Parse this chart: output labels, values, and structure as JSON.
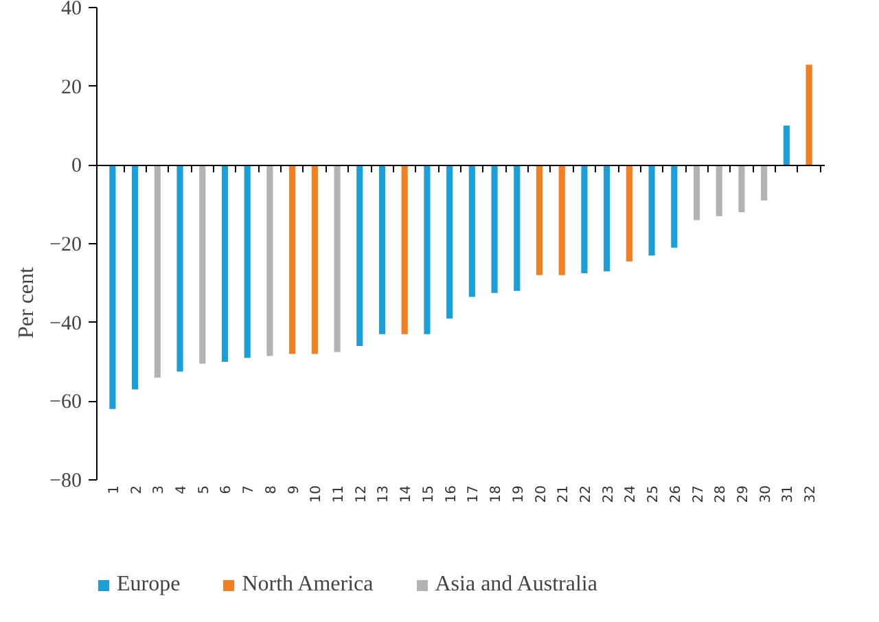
{
  "chart_data": {
    "type": "bar",
    "ylabel": "Per cent",
    "categories": [
      "1",
      "2",
      "3",
      "4",
      "5",
      "6",
      "7",
      "8",
      "9",
      "10",
      "11",
      "12",
      "13",
      "14",
      "15",
      "16",
      "17",
      "18",
      "19",
      "20",
      "21",
      "22",
      "23",
      "24",
      "25",
      "26",
      "27",
      "28",
      "29",
      "30",
      "31",
      "32"
    ],
    "series": [
      {
        "name": "Europe",
        "color": "#1a9fd9",
        "values": [
          -62,
          -57,
          null,
          -52.5,
          null,
          -50,
          -49,
          null,
          null,
          null,
          null,
          -46,
          -43,
          null,
          -43,
          -39,
          -33.5,
          -32.5,
          -32,
          null,
          null,
          -27.5,
          -27,
          null,
          -23,
          -21,
          null,
          null,
          null,
          null,
          10,
          null
        ]
      },
      {
        "name": "North America",
        "color": "#f47f20",
        "values": [
          null,
          null,
          null,
          null,
          null,
          null,
          null,
          null,
          -48,
          -48,
          null,
          null,
          null,
          -43,
          null,
          null,
          null,
          null,
          null,
          -28,
          -28,
          null,
          null,
          -24.5,
          null,
          null,
          null,
          null,
          null,
          null,
          null,
          25.5
        ]
      },
      {
        "name": "Asia and Australia",
        "color": "#b3b3b6",
        "values": [
          null,
          null,
          -54,
          null,
          -50.5,
          null,
          null,
          -48.5,
          null,
          null,
          -47.5,
          null,
          null,
          null,
          null,
          null,
          null,
          null,
          null,
          null,
          null,
          null,
          null,
          null,
          null,
          null,
          -14,
          -13,
          -12,
          -9,
          null,
          null
        ]
      }
    ],
    "ylim": [
      -80,
      40
    ],
    "yticks": [
      -80,
      -60,
      -40,
      -20,
      0,
      20,
      40
    ],
    "legend": "bottom"
  }
}
